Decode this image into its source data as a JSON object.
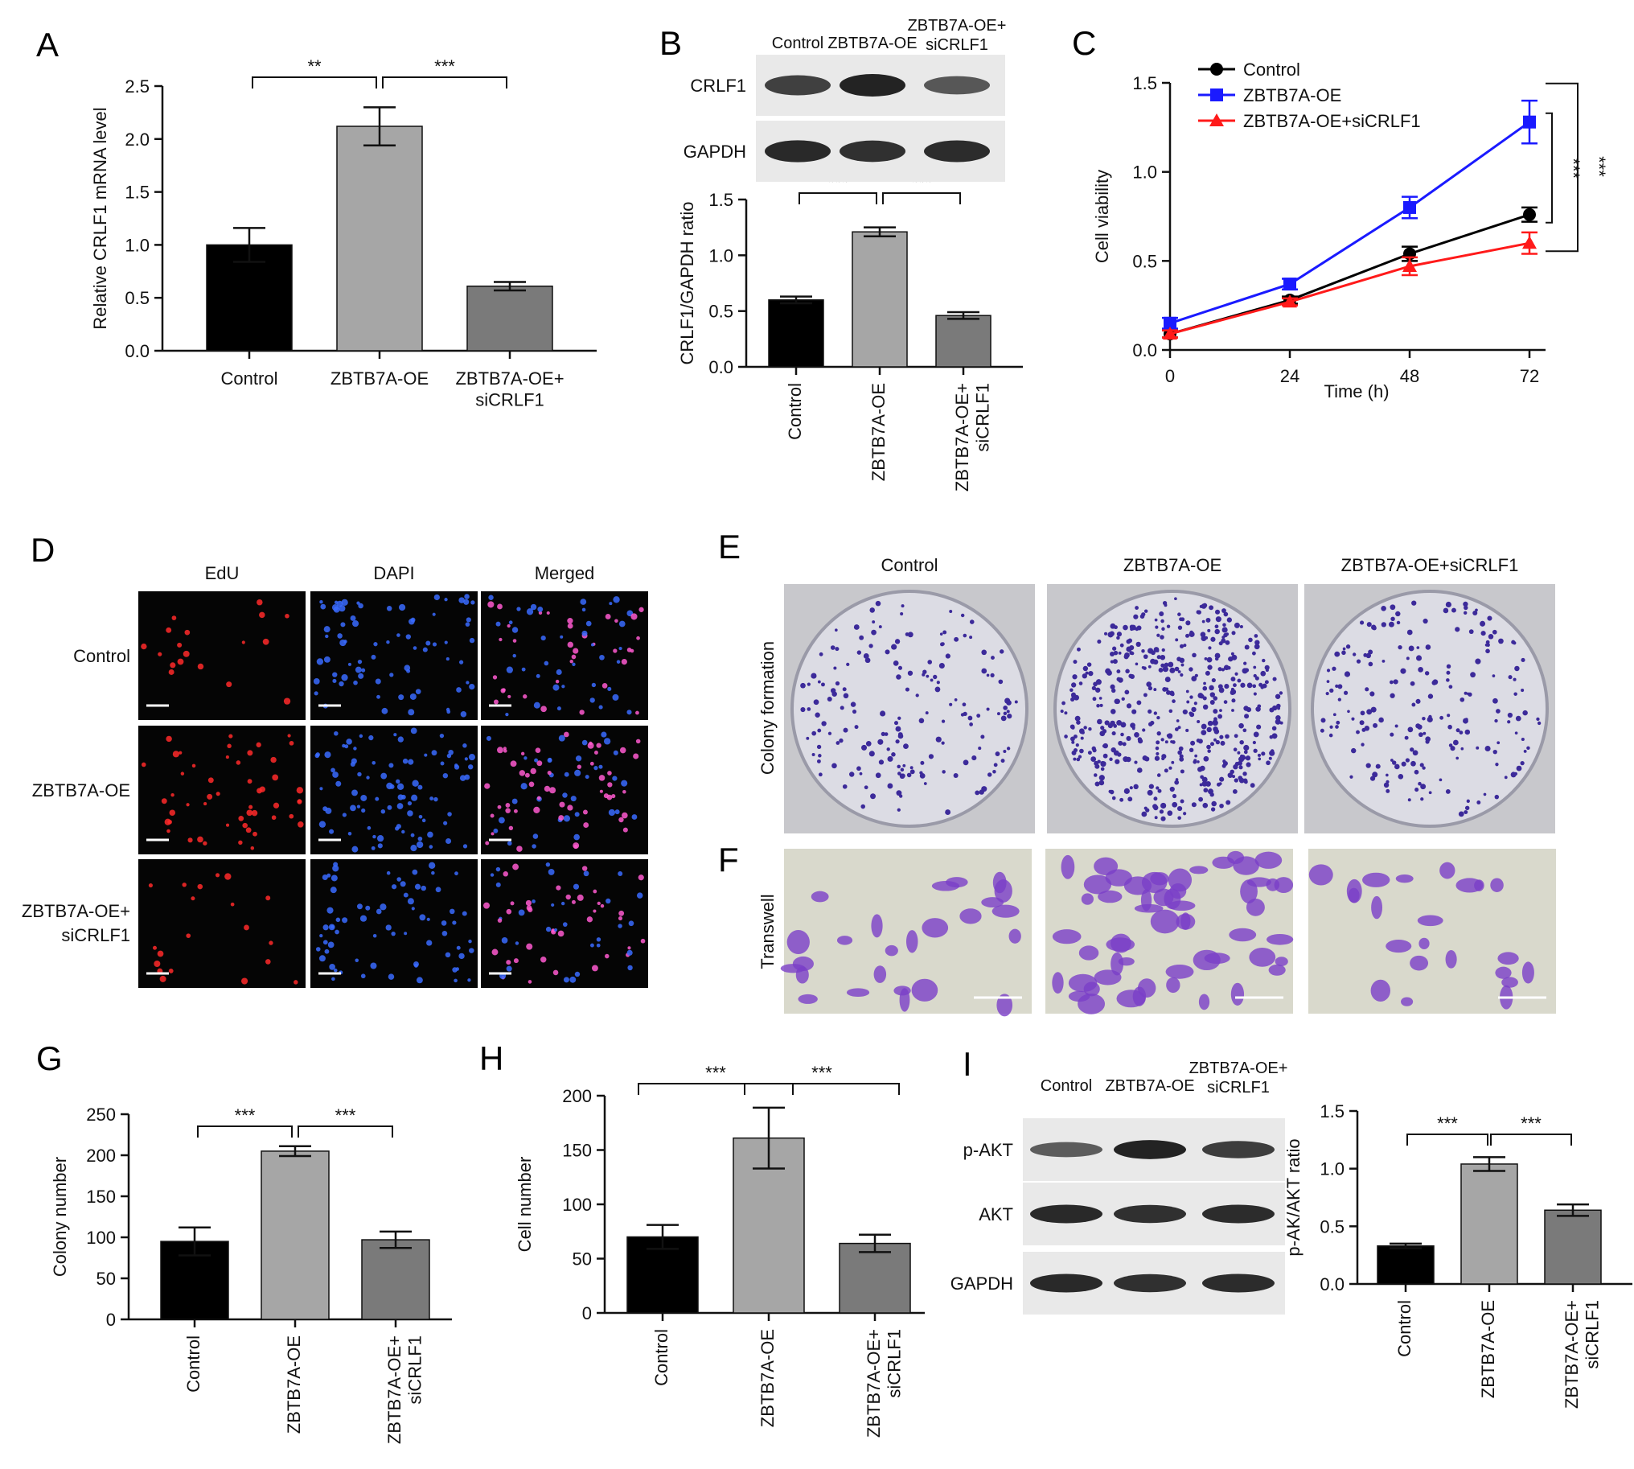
{
  "figure": {
    "panels": {
      "A": "A",
      "B": "B",
      "C": "C",
      "D": "D",
      "E": "E",
      "F": "F",
      "G": "G",
      "H": "H",
      "I": "I"
    },
    "blot_b": {
      "lanes": [
        "Control",
        "ZBTB7A-OE",
        "ZBTB7A-OE+\nsiCRLF1"
      ],
      "rows": [
        "CRLF1",
        "GAPDH"
      ],
      "intensity": [
        [
          0.72,
          0.95,
          0.55
        ],
        [
          0.9,
          0.85,
          0.88
        ]
      ]
    },
    "blot_i": {
      "lanes": [
        "Control",
        "ZBTB7A-OE",
        "ZBTB7A-OE+\nsiCRLF1"
      ],
      "rows": [
        "p-AKT",
        "AKT",
        "GAPDH"
      ],
      "intensity": [
        [
          0.5,
          0.95,
          0.75
        ],
        [
          0.9,
          0.85,
          0.88
        ],
        [
          0.9,
          0.85,
          0.88
        ]
      ]
    },
    "edu": {
      "columns": [
        "EdU",
        "DAPI",
        "Merged"
      ],
      "rows": [
        "Control",
        "ZBTB7A-OE",
        "ZBTB7A-OE+\nsiCRLF1"
      ],
      "colors": {
        "edu": "#ff2a2a",
        "dapi": "#3a6bff",
        "merged": "#ff5ad0",
        "background": "#050505"
      }
    },
    "colony": {
      "ylabel": "Colony formation",
      "columns": [
        "Control",
        "ZBTB7A-OE",
        "ZBTB7A-OE+siCRLF1"
      ],
      "dot_density": [
        0.35,
        1.0,
        0.4
      ],
      "colors": {
        "plate": "#dcdce4",
        "colony": "#3c2a9a"
      }
    },
    "transwell": {
      "ylabel": "Transwell",
      "density": [
        0.45,
        1.0,
        0.4
      ],
      "colors": {
        "background": "#d9d9cc",
        "cell": "#7a3ec8"
      }
    }
  },
  "chart_data": [
    {
      "panel": "A",
      "type": "bar",
      "categories": [
        "Control",
        "ZBTB7A-OE",
        "ZBTB7A-OE+\nsiCRLF1"
      ],
      "values": [
        1.0,
        2.12,
        0.61
      ],
      "errors": [
        0.16,
        0.18,
        0.04
      ],
      "ylabel": "Relative CRLF1 mRNA level",
      "ylim": [
        0,
        2.5
      ],
      "yticks": [
        "0.0",
        "0.5",
        "1.0",
        "1.5",
        "2.0",
        "2.5"
      ],
      "colors": [
        "#000000",
        "#a6a6a6",
        "#7a7a7a"
      ],
      "significance": [
        "**",
        "***"
      ]
    },
    {
      "panel": "B",
      "type": "bar",
      "categories": [
        "Control",
        "ZBTB7A-OE",
        "ZBTB7A-OE+\nsiCRLF1"
      ],
      "values": [
        0.6,
        1.21,
        0.46
      ],
      "errors": [
        0.03,
        0.04,
        0.03
      ],
      "ylabel": "CRLF1/GAPDH ratio",
      "ylim": [
        0,
        1.5
      ],
      "yticks": [
        "0.0",
        "0.5",
        "1.0",
        "1.5"
      ],
      "colors": [
        "#000000",
        "#a6a6a6",
        "#7a7a7a"
      ],
      "significance": [
        "***",
        "***"
      ]
    },
    {
      "panel": "C",
      "type": "line",
      "x": [
        0,
        24,
        48,
        72
      ],
      "xticks": [
        "0",
        "24",
        "48",
        "72"
      ],
      "xlabel": "Time (h)",
      "ylabel": "Cell viability",
      "ylim": [
        0,
        1.5
      ],
      "yticks": [
        "0.0",
        "0.5",
        "1.0",
        "1.5"
      ],
      "legend": "top-left",
      "series": [
        {
          "name": "Control",
          "values": [
            0.09,
            0.28,
            0.54,
            0.76
          ],
          "errors": [
            0.02,
            0.02,
            0.04,
            0.04
          ],
          "color": "#000000",
          "marker": "circle"
        },
        {
          "name": "ZBTB7A-OE",
          "values": [
            0.15,
            0.37,
            0.8,
            1.28
          ],
          "errors": [
            0.03,
            0.03,
            0.06,
            0.12
          ],
          "color": "#1a1aff",
          "marker": "square"
        },
        {
          "name": "ZBTB7A-OE+siCRLF1",
          "values": [
            0.09,
            0.27,
            0.47,
            0.6
          ],
          "errors": [
            0.02,
            0.02,
            0.05,
            0.06
          ],
          "color": "#ff1a1a",
          "marker": "triangle"
        }
      ],
      "significance": [
        "***",
        "***"
      ]
    },
    {
      "panel": "G",
      "type": "bar",
      "categories": [
        "Control",
        "ZBTB7A-OE",
        "ZBTB7A-OE+\nsiCRLF1"
      ],
      "values": [
        95,
        205,
        97
      ],
      "errors": [
        17,
        6,
        10
      ],
      "ylabel": "Colony number",
      "ylim": [
        0,
        250
      ],
      "yticks": [
        "0",
        "50",
        "100",
        "150",
        "200",
        "250"
      ],
      "colors": [
        "#000000",
        "#a6a6a6",
        "#7a7a7a"
      ],
      "significance": [
        "***",
        "***"
      ]
    },
    {
      "panel": "H",
      "type": "bar",
      "categories": [
        "Control",
        "ZBTB7A-OE",
        "ZBTB7A-OE+\nsiCRLF1"
      ],
      "values": [
        70,
        161,
        64
      ],
      "errors": [
        11,
        28,
        8
      ],
      "ylabel": "Cell number",
      "ylim": [
        0,
        200
      ],
      "yticks": [
        "0",
        "50",
        "100",
        "150",
        "200"
      ],
      "colors": [
        "#000000",
        "#a6a6a6",
        "#7a7a7a"
      ],
      "significance": [
        "***",
        "***"
      ]
    },
    {
      "panel": "I",
      "type": "bar",
      "categories": [
        "Control",
        "ZBTB7A-OE",
        "ZBTB7A-OE+\nsiCRLF1"
      ],
      "values": [
        0.33,
        1.04,
        0.64
      ],
      "errors": [
        0.02,
        0.06,
        0.05
      ],
      "ylabel": "p-AK/AKT ratio",
      "ylim": [
        0,
        1.5
      ],
      "yticks": [
        "0.0",
        "0.5",
        "1.0",
        "1.5"
      ],
      "colors": [
        "#000000",
        "#a6a6a6",
        "#7a7a7a"
      ],
      "significance": [
        "***",
        "***"
      ]
    }
  ]
}
